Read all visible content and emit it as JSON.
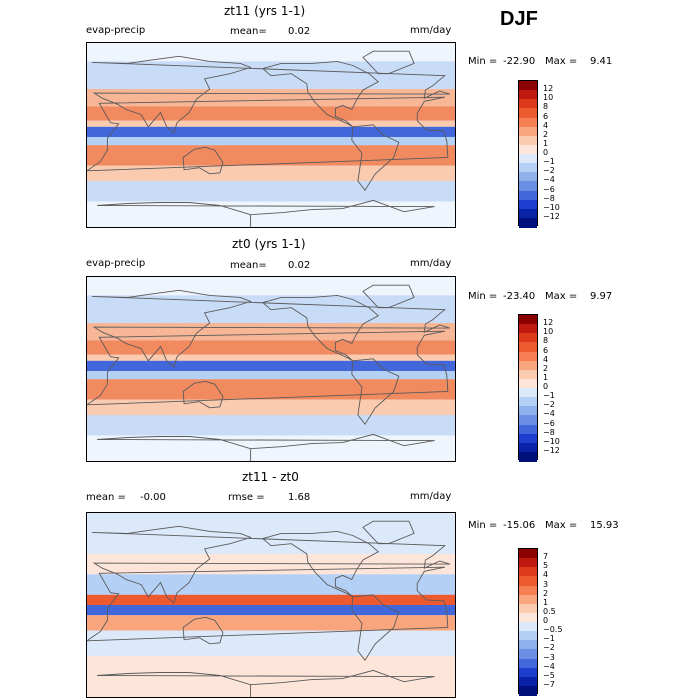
{
  "page": {
    "season": "DJF"
  },
  "colors": {
    "land": "#5a5a5a",
    "ocean_base": "#d6e8fb"
  },
  "chart_data": [
    {
      "type": "heatmap",
      "title": "zt11 (yrs 1-1)",
      "field_label": "evap-precip",
      "mean_label": "mean=",
      "mean_value": "0.02",
      "units": "mm/day",
      "min_label": "Min =",
      "min_value": "-22.90",
      "max_label": "Max =",
      "max_value": "9.41",
      "colorbar": {
        "levels": [
          "12",
          "10",
          "8",
          "6",
          "4",
          "2",
          "1",
          "0",
          "−1",
          "−2",
          "−4",
          "−6",
          "−8",
          "−10",
          "−12"
        ],
        "colors": [
          "#8b0000",
          "#c01a10",
          "#dd3a1c",
          "#ee5a30",
          "#f57e52",
          "#f9a57e",
          "#fbcbb0",
          "#fde6d9",
          "#dbe9fb",
          "#b5d0f5",
          "#8fb2ed",
          "#6a8fe3",
          "#4167da",
          "#1d3fcf",
          "#0a22a8",
          "#00107a"
        ]
      }
    },
    {
      "type": "heatmap",
      "title": "zt0 (yrs 1-1)",
      "field_label": "evap-precip",
      "mean_label": "mean=",
      "mean_value": "0.02",
      "units": "mm/day",
      "min_label": "Min =",
      "min_value": "-23.40",
      "max_label": "Max =",
      "max_value": "9.97",
      "colorbar": {
        "levels": [
          "12",
          "10",
          "8",
          "6",
          "4",
          "2",
          "1",
          "0",
          "−1",
          "−2",
          "−4",
          "−6",
          "−8",
          "−10",
          "−12"
        ],
        "colors": [
          "#8b0000",
          "#c01a10",
          "#dd3a1c",
          "#ee5a30",
          "#f57e52",
          "#f9a57e",
          "#fbcbb0",
          "#fde6d9",
          "#dbe9fb",
          "#b5d0f5",
          "#8fb2ed",
          "#6a8fe3",
          "#4167da",
          "#1d3fcf",
          "#0a22a8",
          "#00107a"
        ]
      }
    },
    {
      "type": "heatmap",
      "title": "zt11 - zt0",
      "mean_label": "mean =",
      "mean_value": "-0.00",
      "rmse_label": "rmse =",
      "rmse_value": "1.68",
      "units": "mm/day",
      "min_label": "Min =",
      "min_value": "-15.06",
      "max_label": "Max =",
      "max_value": "15.93",
      "colorbar": {
        "levels": [
          "7",
          "5",
          "4",
          "3",
          "2",
          "1",
          "0.5",
          "0",
          "−0.5",
          "−1",
          "−2",
          "−3",
          "−4",
          "−5",
          "−7"
        ],
        "colors": [
          "#8b0000",
          "#c01a10",
          "#dd3a1c",
          "#ee5a30",
          "#f57e52",
          "#f9a57e",
          "#fbcbb0",
          "#fde6d9",
          "#dbe9fb",
          "#b5d0f5",
          "#8fb2ed",
          "#6a8fe3",
          "#4167da",
          "#1d3fcf",
          "#0a22a8",
          "#00107a"
        ]
      }
    }
  ]
}
